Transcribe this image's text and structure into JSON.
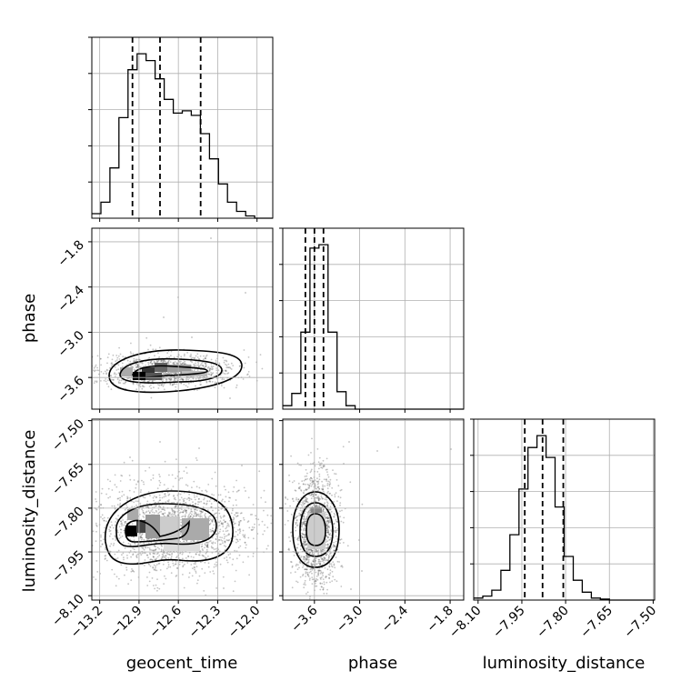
{
  "chart_data": {
    "type": "corner",
    "parameters": [
      "geocent_time",
      "phase",
      "luminosity_distance"
    ],
    "axis_labels": {
      "geocent_time": "geocent_time",
      "phase": "phase",
      "luminosity_distance": "luminosity_distance"
    },
    "ranges": {
      "geocent_time": [
        -13.26,
        -11.88
      ],
      "phase": [
        -4.02,
        -1.62
      ],
      "luminosity_distance": [
        -8.115,
        -7.495
      ]
    },
    "ticks": {
      "geocent_time": [
        -13.2,
        -12.9,
        -12.6,
        -12.3,
        -12.0
      ],
      "phase": [
        -3.6,
        -3.0,
        -2.4,
        -1.8
      ],
      "luminosity_distance": [
        -8.1,
        -7.95,
        -7.8,
        -7.65,
        -7.5
      ]
    },
    "tick_labels": {
      "geocent_time": [
        "−13.2",
        "−12.9",
        "−12.6",
        "−12.3",
        "−12.0"
      ],
      "phase": [
        "−3.6",
        "−3.0",
        "−2.4",
        "−1.8"
      ],
      "luminosity_distance": [
        "−8.10",
        "−7.95",
        "−7.80",
        "−7.65",
        "−7.50"
      ]
    },
    "quantiles": {
      "geocent_time": [
        -12.95,
        -12.74,
        -12.43
      ],
      "phase": [
        -3.72,
        -3.6,
        -3.48
      ],
      "luminosity_distance": [
        -7.94,
        -7.879,
        -7.808
      ]
    },
    "histograms": {
      "geocent_time": {
        "edges_range": [
          -13.26,
          -11.88
        ],
        "counts": [
          2,
          7,
          22,
          44,
          65,
          72,
          69,
          61,
          52,
          46,
          47,
          45,
          37,
          26,
          15,
          7,
          3,
          1,
          0,
          0
        ]
      },
      "phase": {
        "edges_range": [
          -4.02,
          -1.62
        ],
        "counts": [
          2,
          9,
          44,
          92,
          94,
          44,
          10,
          2,
          0,
          0,
          0,
          0,
          0,
          0,
          0,
          0,
          0,
          0,
          0,
          0
        ]
      },
      "luminosity_distance": {
        "edges_range": [
          -8.115,
          -7.495
        ],
        "counts": [
          1,
          2,
          5,
          15,
          33,
          56,
          77,
          83,
          72,
          47,
          22,
          10,
          4,
          1,
          0.5,
          0,
          0,
          0,
          0,
          0
        ]
      }
    },
    "grid": true
  }
}
